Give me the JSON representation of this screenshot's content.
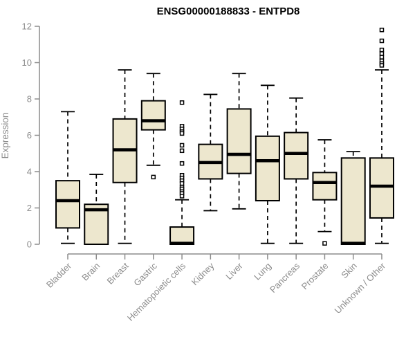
{
  "chart_data": {
    "type": "boxplot",
    "title": "ENSG00000188833 - ENTPD8",
    "ylabel": "Expression",
    "xlabel": "",
    "ylim": [
      0,
      12
    ],
    "yticks": [
      0,
      2,
      4,
      6,
      8,
      10,
      12
    ],
    "grid": false,
    "legend": "none",
    "box_fill": "#EDE7CE",
    "box_stroke": "#000000",
    "median_color": "#000000",
    "whisker_color": "#000000",
    "outlier_color": "#000000",
    "axis_color": "#8C8C8C",
    "title_color": "#000000",
    "categories": [
      "Bladder",
      "Brain",
      "Breast",
      "Gastric",
      "Hematopoietic cells",
      "Kidney",
      "Liver",
      "Lung",
      "Pancreas",
      "Prostate",
      "Skin",
      "Unknown / Other"
    ],
    "boxes": [
      {
        "label": "Bladder",
        "whislo": 0.05,
        "q1": 0.9,
        "med": 2.4,
        "q3": 3.5,
        "whishi": 7.3,
        "fliers": []
      },
      {
        "label": "Brain",
        "whislo": 0.0,
        "q1": 0.0,
        "med": 1.9,
        "q3": 2.2,
        "whishi": 3.85,
        "fliers": []
      },
      {
        "label": "Breast",
        "whislo": 0.05,
        "q1": 3.4,
        "med": 5.2,
        "q3": 6.9,
        "whishi": 9.6,
        "fliers": []
      },
      {
        "label": "Gastric",
        "whislo": 4.35,
        "q1": 6.3,
        "med": 6.8,
        "q3": 7.9,
        "whishi": 9.4,
        "fliers": [
          3.7
        ]
      },
      {
        "label": "Hematopoietic cells",
        "whislo": 0.0,
        "q1": 0.0,
        "med": 0.05,
        "q3": 0.95,
        "whishi": 2.45,
        "fliers": [
          7.8,
          6.5,
          6.35,
          6.2,
          6.1,
          5.45,
          5.15,
          4.45,
          3.8,
          3.65,
          3.5,
          3.35,
          3.15,
          3.05,
          2.9,
          2.8,
          2.65
        ]
      },
      {
        "label": "Kidney",
        "whislo": 1.85,
        "q1": 3.6,
        "med": 4.5,
        "q3": 5.5,
        "whishi": 8.25,
        "fliers": []
      },
      {
        "label": "Liver",
        "whislo": 1.95,
        "q1": 3.9,
        "med": 4.95,
        "q3": 7.45,
        "whishi": 9.4,
        "fliers": []
      },
      {
        "label": "Lung",
        "whislo": 0.05,
        "q1": 2.4,
        "med": 4.6,
        "q3": 5.95,
        "whishi": 8.75,
        "fliers": []
      },
      {
        "label": "Pancreas",
        "whislo": 0.05,
        "q1": 3.6,
        "med": 5.0,
        "q3": 6.15,
        "whishi": 8.05,
        "fliers": []
      },
      {
        "label": "Prostate",
        "whislo": 0.7,
        "q1": 2.45,
        "med": 3.4,
        "q3": 3.95,
        "whishi": 5.75,
        "fliers": [
          0.05
        ]
      },
      {
        "label": "Skin",
        "whislo": 0.0,
        "q1": 0.0,
        "med": 0.05,
        "q3": 4.75,
        "whishi": 5.1,
        "fliers": []
      },
      {
        "label": "Unknown / Other",
        "whislo": 0.05,
        "q1": 1.45,
        "med": 3.2,
        "q3": 4.75,
        "whishi": 9.6,
        "fliers": [
          11.8,
          11.2,
          10.7,
          10.5,
          10.3,
          10.1,
          9.95,
          9.85
        ]
      }
    ]
  }
}
